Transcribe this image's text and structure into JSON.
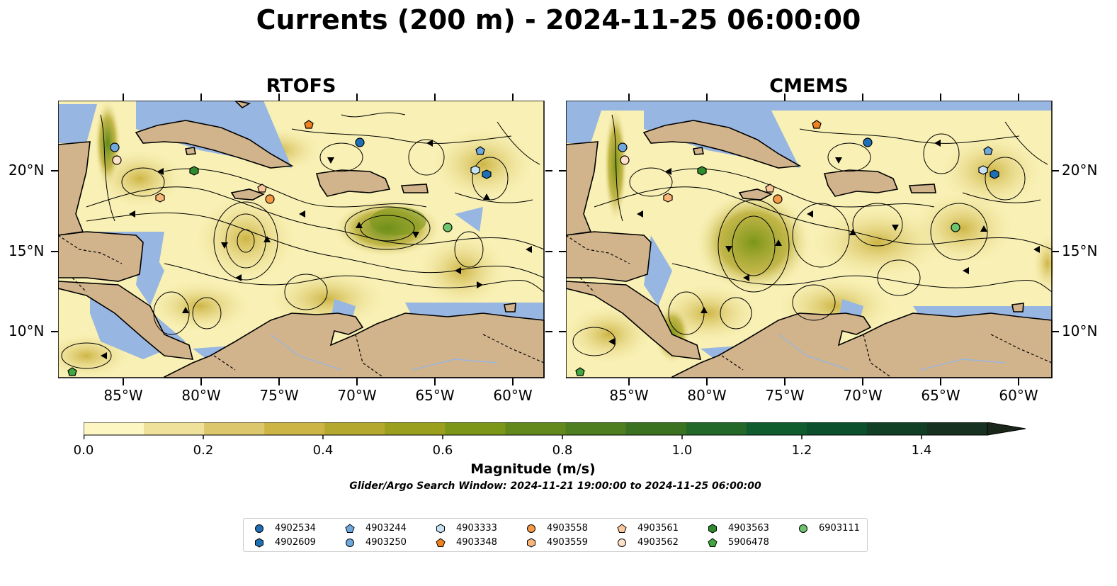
{
  "title": "Currents (200 m) - 2024-11-25 06:00:00",
  "panels": [
    {
      "title": "RTOFS"
    },
    {
      "title": "CMEMS"
    }
  ],
  "axes": {
    "lat_ticks": [
      "20°N",
      "15°N",
      "10°N"
    ],
    "lon_ticks": [
      "85°W",
      "80°W",
      "75°W",
      "70°W",
      "65°W",
      "60°W"
    ]
  },
  "colorbar": {
    "label": "Magnitude (m/s)",
    "ticks": [
      "0.0",
      "0.2",
      "0.4",
      "0.6",
      "0.8",
      "1.0",
      "1.2",
      "1.4"
    ],
    "colors": [
      "#fdf6c3",
      "#efe19a",
      "#ddc76d",
      "#cdb545",
      "#b5a82e",
      "#9aa01d",
      "#7c961a",
      "#63891c",
      "#4e7e1f",
      "#3b7222",
      "#236829",
      "#0f5c2f",
      "#0b4f2c",
      "#103f26",
      "#16311f",
      "#1a251a"
    ],
    "extend": "max"
  },
  "search_window": "Glider/Argo Search Window: 2024-11-21 19:00:00 to 2024-11-25 06:00:00",
  "legend": [
    {
      "id": "4902534",
      "marker": "circle",
      "color": "#1f6fb4"
    },
    {
      "id": "4902609",
      "marker": "hexagon",
      "color": "#1f6fb4"
    },
    {
      "id": "4903244",
      "marker": "pentagon",
      "color": "#6fa8dc"
    },
    {
      "id": "4903250",
      "marker": "circle",
      "color": "#6fa8dc"
    },
    {
      "id": "4903333",
      "marker": "hexagon",
      "color": "#c6e3f5"
    },
    {
      "id": "4903348",
      "marker": "pentagon",
      "color": "#f0821e"
    },
    {
      "id": "4903558",
      "marker": "circle",
      "color": "#f59a46"
    },
    {
      "id": "4903559",
      "marker": "hexagon",
      "color": "#f9b67a"
    },
    {
      "id": "4903561",
      "marker": "pentagon",
      "color": "#fbc79c"
    },
    {
      "id": "4903562",
      "marker": "circle",
      "color": "#fde2c9"
    },
    {
      "id": "4903563",
      "marker": "hexagon",
      "color": "#2e8b2e"
    },
    {
      "id": "5906478",
      "marker": "pentagon",
      "color": "#3fa83f"
    },
    {
      "id": "6903111",
      "marker": "circle",
      "color": "#6cc46c"
    }
  ],
  "colors": {
    "land": "#d2b48c",
    "shallow": "#97b6e1",
    "ocean_base": "#f8f0b4"
  }
}
